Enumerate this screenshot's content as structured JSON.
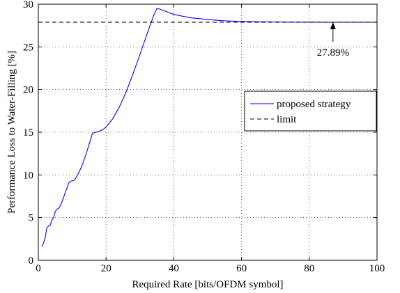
{
  "chart_data": {
    "type": "line",
    "xlabel": "Required Rate [bits/OFDM symbol]",
    "ylabel": "Performance Loss to Water-Filling [%]",
    "xlim": [
      0,
      100
    ],
    "ylim": [
      0,
      30
    ],
    "xticks": [
      0,
      20,
      40,
      60,
      80,
      100
    ],
    "yticks": [
      0,
      5,
      10,
      15,
      20,
      25,
      30
    ],
    "grid": true,
    "legend_position": "right, upper-middle",
    "series": [
      {
        "name": "proposed strategy",
        "style": "solid",
        "color": "#0000ff",
        "x": [
          1,
          1.5,
          2,
          2.5,
          3,
          3.5,
          4,
          4.5,
          5,
          5.5,
          6,
          6.5,
          7,
          7.5,
          8,
          8.5,
          9,
          9.5,
          10,
          10.5,
          11,
          12,
          13,
          14,
          15,
          16,
          17,
          18,
          19,
          20,
          22,
          24,
          26,
          28,
          30,
          32,
          34,
          35,
          36,
          38,
          40,
          45,
          50,
          55,
          60,
          65,
          70,
          75,
          80,
          85,
          90,
          95,
          100
        ],
        "y": [
          1.6,
          2.0,
          2.6,
          3.8,
          4.0,
          4.1,
          4.7,
          5.0,
          5.7,
          6.0,
          6.1,
          6.4,
          6.9,
          7.4,
          8.0,
          8.5,
          9.1,
          9.25,
          9.3,
          9.35,
          9.6,
          10.3,
          11.2,
          12.3,
          13.6,
          14.9,
          15.0,
          15.1,
          15.3,
          15.6,
          16.6,
          18.0,
          19.8,
          21.9,
          24.1,
          26.4,
          28.6,
          29.5,
          29.4,
          29.1,
          28.8,
          28.4,
          28.2,
          28.05,
          27.98,
          27.94,
          27.92,
          27.9,
          27.9,
          27.89,
          27.89,
          27.89,
          27.89
        ]
      },
      {
        "name": "limit",
        "style": "dashed",
        "color": "#000000",
        "x": [
          0,
          100
        ],
        "y": [
          27.89,
          27.89
        ]
      }
    ],
    "annotations": [
      {
        "text": "27.89%",
        "arrow_to": [
          87,
          27.89
        ],
        "arrow_from": [
          87,
          25.6
        ]
      }
    ]
  }
}
